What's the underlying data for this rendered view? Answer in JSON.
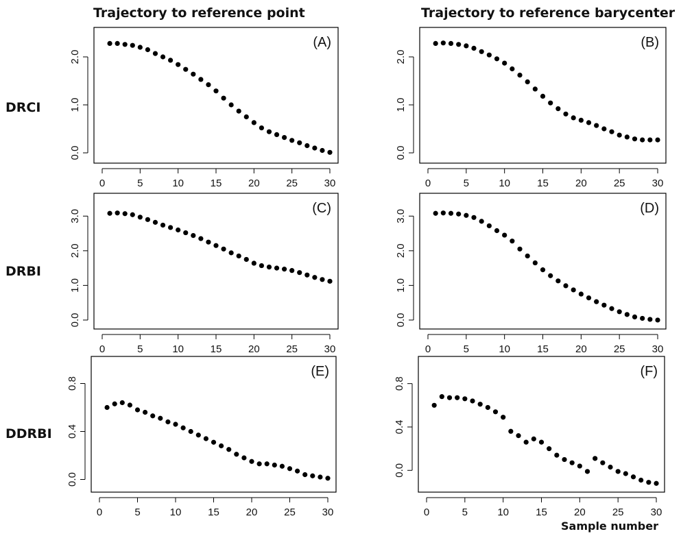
{
  "column_titles": [
    "Trajectory to reference point",
    "Trajectory to reference barycenter"
  ],
  "row_labels": [
    "DRCI",
    "DRBI",
    "DDRBI"
  ],
  "xlabel": "Sample number",
  "colors": {
    "points": "#000000",
    "axes": "#000000"
  },
  "chart_data": [
    {
      "type": "scatter",
      "panel": "(A)",
      "x_ticks": [
        0,
        5,
        10,
        15,
        20,
        25,
        30
      ],
      "y_ticks": [
        "0.0",
        "1.0",
        "2.0"
      ],
      "xlim": [
        0,
        30
      ],
      "ylim": [
        -0.1,
        2.5
      ],
      "x": [
        1,
        2,
        3,
        4,
        5,
        6,
        7,
        8,
        9,
        10,
        11,
        12,
        13,
        14,
        15,
        16,
        17,
        18,
        19,
        20,
        21,
        22,
        23,
        24,
        25,
        26,
        27,
        28,
        29,
        30
      ],
      "values": [
        2.28,
        2.28,
        2.26,
        2.24,
        2.2,
        2.15,
        2.07,
        2.0,
        1.93,
        1.84,
        1.74,
        1.64,
        1.53,
        1.42,
        1.29,
        1.14,
        1.0,
        0.87,
        0.75,
        0.63,
        0.52,
        0.44,
        0.38,
        0.32,
        0.26,
        0.21,
        0.15,
        0.1,
        0.05,
        0.01
      ]
    },
    {
      "type": "scatter",
      "panel": "(B)",
      "x_ticks": [
        0,
        5,
        10,
        15,
        20,
        25,
        30
      ],
      "y_ticks": [
        "0.0",
        "1.0",
        "2.0"
      ],
      "xlim": [
        0,
        30
      ],
      "ylim": [
        -0.1,
        2.5
      ],
      "x": [
        1,
        2,
        3,
        4,
        5,
        6,
        7,
        8,
        9,
        10,
        11,
        12,
        13,
        14,
        15,
        16,
        17,
        18,
        19,
        20,
        21,
        22,
        23,
        24,
        25,
        26,
        27,
        28,
        29,
        30
      ],
      "values": [
        2.28,
        2.29,
        2.28,
        2.26,
        2.23,
        2.18,
        2.11,
        2.04,
        1.96,
        1.87,
        1.75,
        1.62,
        1.48,
        1.33,
        1.18,
        1.04,
        0.92,
        0.81,
        0.73,
        0.68,
        0.63,
        0.57,
        0.5,
        0.44,
        0.37,
        0.33,
        0.29,
        0.27,
        0.27,
        0.27
      ]
    },
    {
      "type": "scatter",
      "panel": "(C)",
      "x_ticks": [
        0,
        5,
        10,
        15,
        20,
        25,
        30
      ],
      "y_ticks": [
        "0.0",
        "1.0",
        "2.0",
        "3.0"
      ],
      "xlim": [
        0,
        30
      ],
      "ylim": [
        -0.1,
        3.5
      ],
      "x": [
        1,
        2,
        3,
        4,
        5,
        6,
        7,
        8,
        9,
        10,
        11,
        12,
        13,
        14,
        15,
        16,
        17,
        18,
        19,
        20,
        21,
        22,
        23,
        24,
        25,
        26,
        27,
        28,
        29,
        30
      ],
      "values": [
        3.08,
        3.09,
        3.07,
        3.04,
        2.97,
        2.9,
        2.82,
        2.74,
        2.67,
        2.6,
        2.52,
        2.44,
        2.35,
        2.25,
        2.15,
        2.05,
        1.94,
        1.85,
        1.75,
        1.64,
        1.57,
        1.53,
        1.5,
        1.47,
        1.43,
        1.37,
        1.3,
        1.23,
        1.17,
        1.12
      ]
    },
    {
      "type": "scatter",
      "panel": "(D)",
      "x_ticks": [
        0,
        5,
        10,
        15,
        20,
        25,
        30
      ],
      "y_ticks": [
        "0.0",
        "1.0",
        "2.0",
        "3.0"
      ],
      "xlim": [
        0,
        30
      ],
      "ylim": [
        -0.1,
        3.5
      ],
      "x": [
        1,
        2,
        3,
        4,
        5,
        6,
        7,
        8,
        9,
        10,
        11,
        12,
        13,
        14,
        15,
        16,
        17,
        18,
        19,
        20,
        21,
        22,
        23,
        24,
        25,
        26,
        27,
        28,
        29,
        30
      ],
      "values": [
        3.08,
        3.09,
        3.08,
        3.06,
        3.02,
        2.96,
        2.85,
        2.72,
        2.58,
        2.45,
        2.28,
        2.05,
        1.85,
        1.65,
        1.45,
        1.28,
        1.13,
        0.99,
        0.87,
        0.75,
        0.64,
        0.53,
        0.43,
        0.33,
        0.24,
        0.16,
        0.09,
        0.05,
        0.02,
        0.0
      ]
    },
    {
      "type": "scatter",
      "panel": "(E)",
      "x_ticks": [
        0,
        5,
        10,
        15,
        20,
        25,
        30
      ],
      "y_ticks": [
        "0.0",
        "0.4",
        "0.8"
      ],
      "xlim": [
        0,
        30
      ],
      "ylim": [
        -0.06,
        0.98
      ],
      "x": [
        1,
        2,
        3,
        4,
        5,
        6,
        7,
        8,
        9,
        10,
        11,
        12,
        13,
        14,
        15,
        16,
        17,
        18,
        19,
        20,
        21,
        22,
        23,
        24,
        25,
        26,
        27,
        28,
        29,
        30
      ],
      "values": [
        0.6,
        0.63,
        0.64,
        0.62,
        0.58,
        0.56,
        0.53,
        0.51,
        0.48,
        0.46,
        0.43,
        0.4,
        0.37,
        0.34,
        0.31,
        0.28,
        0.25,
        0.21,
        0.18,
        0.15,
        0.13,
        0.13,
        0.12,
        0.11,
        0.09,
        0.07,
        0.04,
        0.03,
        0.02,
        0.01
      ]
    },
    {
      "type": "scatter",
      "panel": "(F)",
      "x_ticks": [
        0,
        5,
        10,
        15,
        20,
        25,
        30
      ],
      "y_ticks": [
        "0.0",
        "0.4",
        "0.8"
      ],
      "xlim": [
        0,
        30
      ],
      "ylim": [
        -0.15,
        1.0
      ],
      "x": [
        1,
        2,
        3,
        4,
        5,
        6,
        7,
        8,
        9,
        10,
        11,
        12,
        13,
        14,
        15,
        16,
        17,
        18,
        19,
        20,
        21,
        22,
        23,
        24,
        25,
        26,
        27,
        28,
        29,
        30
      ],
      "values": [
        0.6,
        0.68,
        0.67,
        0.67,
        0.66,
        0.64,
        0.61,
        0.58,
        0.54,
        0.49,
        0.36,
        0.32,
        0.26,
        0.29,
        0.26,
        0.2,
        0.14,
        0.1,
        0.07,
        0.04,
        -0.01,
        0.11,
        0.07,
        0.03,
        -0.01,
        -0.03,
        -0.06,
        -0.09,
        -0.11,
        -0.12
      ]
    }
  ]
}
